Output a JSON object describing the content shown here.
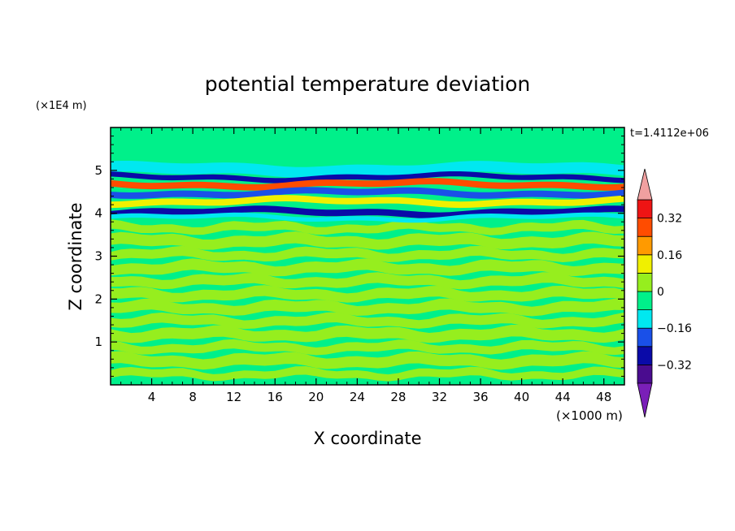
{
  "chart_data": {
    "type": "heatmap",
    "title": "potential temperature deviation",
    "xlabel": "X coordinate",
    "ylabel": "Z coordinate",
    "x_unit": "(×1000 m)",
    "y_unit": "(×1E4 m)",
    "time_label": "t=1.4112e+06",
    "xlim": [
      0,
      50
    ],
    "ylim": [
      0,
      6
    ],
    "x_ticks": [
      4,
      8,
      12,
      16,
      20,
      24,
      28,
      32,
      36,
      40,
      44,
      48
    ],
    "x_tick_labels": [
      "4",
      "8",
      "12",
      "16",
      "20",
      "24",
      "28",
      "32",
      "36",
      "40",
      "44",
      "48"
    ],
    "y_ticks": [
      1,
      2,
      3,
      4,
      5
    ],
    "y_tick_labels": [
      "1",
      "2",
      "3",
      "4",
      "5"
    ],
    "colorbar": {
      "levels": [
        -0.4,
        -0.32,
        -0.24,
        -0.16,
        -0.08,
        0,
        0.08,
        0.16,
        0.24,
        0.32,
        0.4
      ],
      "colors": [
        "#4a0c8f",
        "#0a0aa8",
        "#1a50e8",
        "#00e8f0",
        "#00f08a",
        "#96ee1e",
        "#f0f000",
        "#ff9a00",
        "#ff4c00",
        "#ee1414"
      ],
      "under_color": "#7a1fb8",
      "over_color": "#f0a0a0",
      "tick_values": [
        -0.32,
        -0.16,
        0,
        0.16,
        0.32
      ],
      "tick_labels": [
        "−0.32",
        "−0.16",
        "0",
        "0.16",
        "0.32"
      ]
    },
    "field": {
      "background_colors": [
        "#00f08a",
        "#96ee1e"
      ],
      "structure": "alternating near-zero layers from z=0 to z=3.9; strong alternating positive/negative layers between z=3.9 and z=5.2",
      "bands": [
        {
          "z0": 5.2,
          "z1": 6.0,
          "color": "#00f08a"
        },
        {
          "z0": 4.9,
          "z1": 5.15,
          "color": "#00e8f0"
        },
        {
          "z0": 4.78,
          "z1": 4.9,
          "color": "#0a0aa8"
        },
        {
          "z0": 4.6,
          "z1": 4.75,
          "color": "#ff4c00"
        },
        {
          "z0": 4.4,
          "z1": 4.55,
          "color": "#1a50e8"
        },
        {
          "z0": 4.2,
          "z1": 4.35,
          "color": "#f0f000"
        },
        {
          "z0": 3.95,
          "z1": 4.1,
          "color": "#0a0aa8"
        },
        {
          "z0": 3.85,
          "z1": 3.95,
          "color": "#00e8f0"
        }
      ]
    }
  }
}
